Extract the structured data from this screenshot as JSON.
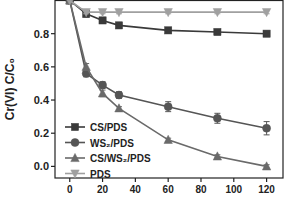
{
  "chart_data": {
    "type": "line",
    "y_label": "Cr(VI) C/C₀",
    "x": [
      0,
      10,
      20,
      30,
      60,
      90,
      120
    ],
    "xlim": [
      -9,
      130
    ],
    "xticks": [
      0,
      20,
      40,
      60,
      80,
      100,
      120
    ],
    "ylim": [
      -0.07,
      1.0
    ],
    "yticks": [
      {
        "value": 0,
        "label": "0.0"
      },
      {
        "value": 0.2,
        "label": "0.2"
      },
      {
        "value": 0.4,
        "label": "0.4"
      },
      {
        "value": 0.6,
        "label": "0.6"
      },
      {
        "value": 0.8,
        "label": "0.8"
      }
    ],
    "legend": "lower left",
    "series": [
      {
        "name": "CS/PDS",
        "color": "#3a3a3a",
        "marker": "square",
        "values": [
          1.0,
          0.92,
          0.88,
          0.85,
          0.82,
          0.81,
          0.8
        ],
        "errors": [
          0,
          0.02,
          0.01,
          0.01,
          0.01,
          0.01,
          0.01
        ]
      },
      {
        "name": "WS₂/PDS",
        "color": "#555555",
        "marker": "circle",
        "values": [
          1.0,
          0.56,
          0.49,
          0.43,
          0.36,
          0.29,
          0.23
        ],
        "errors": [
          0,
          0.02,
          0.02,
          0.02,
          0.03,
          0.03,
          0.04
        ]
      },
      {
        "name": "CS/WS₂/PDS",
        "color": "#6a6a6a",
        "marker": "triangle-up",
        "values": [
          1.0,
          0.6,
          0.44,
          0.35,
          0.16,
          0.06,
          0.0
        ],
        "errors": [
          0,
          0.02,
          0.02,
          0.01,
          0.01,
          0.01,
          0.01
        ]
      },
      {
        "name": "PDS",
        "color": "#a0a0a0",
        "marker": "triangle-down",
        "values": [
          1.0,
          0.93,
          0.93,
          0.93,
          0.93,
          0.93,
          0.93
        ],
        "errors": [
          0,
          0.01,
          0.01,
          0.01,
          0.01,
          0.01,
          0.01
        ]
      }
    ]
  }
}
